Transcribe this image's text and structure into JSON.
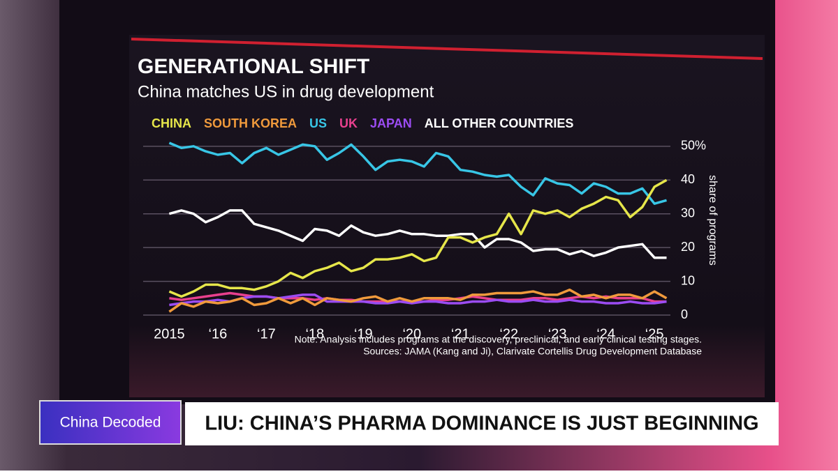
{
  "chart_data": {
    "type": "line",
    "title": "GENERATIONAL SHIFT",
    "subtitle": "China matches US in drug development",
    "y_label": "share of programs",
    "note": "Note: Analysis includes programs at the discovery, preclinical, and early clinical testing stages.",
    "source": "Sources: JAMA (Kang and Ji), Clarivate Cortellis Drug Development Database",
    "x": [
      2015,
      2015.25,
      2015.5,
      2015.75,
      2016,
      2016.25,
      2016.5,
      2016.75,
      2017,
      2017.25,
      2017.5,
      2017.75,
      2018,
      2018.25,
      2018.5,
      2018.75,
      2019,
      2019.25,
      2019.5,
      2019.75,
      2020,
      2020.25,
      2020.5,
      2020.75,
      2021,
      2021.25,
      2021.5,
      2021.75,
      2022,
      2022.25,
      2022.5,
      2022.75,
      2023,
      2023.25,
      2023.5,
      2023.75,
      2024,
      2024.25,
      2024.5,
      2024.75,
      2025,
      2025.25
    ],
    "xlim": [
      2014.85,
      2025.3
    ],
    "xticks": [
      {
        "value": 2015,
        "label": "2015"
      },
      {
        "value": 2016,
        "label": "‘16"
      },
      {
        "value": 2017,
        "label": "‘17"
      },
      {
        "value": 2018,
        "label": "‘18"
      },
      {
        "value": 2019,
        "label": "‘19"
      },
      {
        "value": 2020,
        "label": "‘20"
      },
      {
        "value": 2021,
        "label": "‘21"
      },
      {
        "value": 2022,
        "label": "‘22"
      },
      {
        "value": 2023,
        "label": "‘23"
      },
      {
        "value": 2024,
        "label": "‘24"
      },
      {
        "value": 2025,
        "label": "‘25"
      }
    ],
    "ylim": [
      0,
      51
    ],
    "yticks": [
      0,
      10,
      20,
      30,
      40,
      {
        "value": 50,
        "label": "50%"
      }
    ],
    "grid": true,
    "series": [
      {
        "name": "CHINA",
        "color": "#e6e64a",
        "values": [
          7,
          5.5,
          7,
          9,
          9,
          8,
          8,
          7.5,
          8.5,
          10,
          12.5,
          11,
          13,
          14,
          15.5,
          13,
          14,
          16.5,
          16.5,
          17,
          18,
          16,
          17,
          23,
          23,
          21.5,
          23,
          24,
          30,
          24,
          31,
          30,
          31,
          29,
          31.5,
          33,
          35,
          34,
          29,
          32,
          38,
          40
        ]
      },
      {
        "name": "SOUTH KOREA",
        "color": "#f09a3c",
        "values": [
          1,
          3.5,
          2.5,
          4,
          3.5,
          4,
          5,
          3,
          3.5,
          5,
          3.5,
          5,
          3,
          5,
          4.5,
          4,
          5,
          5.5,
          4,
          5,
          4,
          5,
          5,
          5,
          4.5,
          6,
          6,
          6.5,
          6.5,
          6.5,
          7,
          6,
          6,
          7.5,
          5.5,
          6,
          5,
          6,
          6,
          5,
          7,
          5
        ]
      },
      {
        "name": "US",
        "color": "#38c6e6",
        "values": [
          51,
          49.5,
          50,
          48.5,
          47.5,
          48,
          45,
          48,
          49.5,
          47.5,
          49,
          50.5,
          50,
          46,
          48,
          50.5,
          47,
          43,
          45.5,
          46,
          45.5,
          44,
          48,
          47,
          43,
          42.5,
          41.5,
          41,
          41.5,
          38,
          35.5,
          40.5,
          39,
          38.5,
          36,
          39,
          38,
          36,
          36,
          37.5,
          33,
          34
        ]
      },
      {
        "name": "UK",
        "color": "#e8408e",
        "values": [
          5,
          4.5,
          5,
          5.5,
          6,
          6.5,
          6,
          5.5,
          5.5,
          5,
          5,
          5,
          4.5,
          5,
          4.5,
          4.5,
          4,
          4,
          4,
          4,
          4,
          4,
          4.5,
          4.5,
          5,
          5.5,
          5,
          4.5,
          4.5,
          4.5,
          5,
          5,
          4.5,
          5,
          5.5,
          5,
          5.5,
          5,
          5,
          5,
          4,
          4
        ]
      },
      {
        "name": "JAPAN",
        "color": "#9b4cf2",
        "values": [
          3,
          3.5,
          4,
          4,
          4.5,
          4,
          5,
          5.5,
          5.5,
          5,
          5.5,
          6,
          6,
          4,
          4,
          4,
          4,
          3.5,
          3.5,
          4,
          3.5,
          4,
          4,
          3.5,
          3.5,
          4,
          4,
          4.5,
          4,
          4,
          4.5,
          4,
          4,
          4.5,
          4,
          4,
          3.5,
          3.5,
          4,
          3.5,
          3.5,
          4
        ]
      },
      {
        "name": "ALL OTHER COUNTRIES",
        "color": "#ffffff",
        "values": [
          30,
          31,
          30,
          27.5,
          29,
          31,
          31,
          27,
          26,
          25,
          23.5,
          22,
          25.5,
          25,
          23.5,
          26.5,
          24.5,
          23.5,
          24,
          25,
          24,
          24,
          23.5,
          23.5,
          24,
          24,
          20,
          22.5,
          22.5,
          21.5,
          19,
          19.5,
          19.5,
          18,
          19,
          17.5,
          18.5,
          20,
          20.5,
          21,
          17,
          17
        ]
      }
    ]
  },
  "lower_third": {
    "show": "China Decoded",
    "headline": "LIU: CHINA’S PHARMA DOMINANCE IS JUST BEGINNING"
  }
}
